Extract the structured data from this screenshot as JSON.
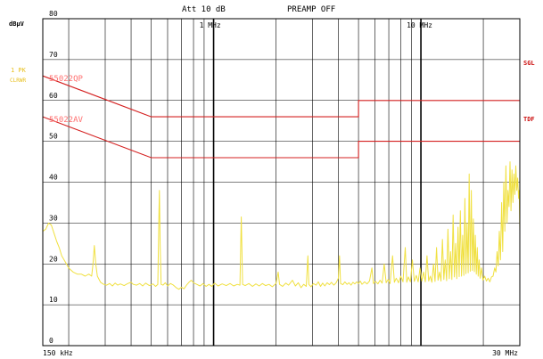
{
  "header": {
    "attenuation": "Att 10 dB",
    "preamp": "PREAMP OFF"
  },
  "left_labels": {
    "unit": "dBµV",
    "trace_mode": "1 PK",
    "trace_clear": "CLRWR"
  },
  "right_labels": {
    "sgl": "SGL",
    "tdf": "TDF"
  },
  "colors": {
    "trace": "#f0e040",
    "limit": "#d42020",
    "grid": "#000000",
    "annotation_left": "#e8c020",
    "annotation_right": "#cc1010",
    "limit_label": "#ff7070"
  },
  "chart_data": {
    "type": "line",
    "title": "",
    "xlabel": "",
    "ylabel": "dBµV",
    "x_scale": "log",
    "xlim_hz": [
      150000,
      30000000
    ],
    "ylim": [
      0,
      80
    ],
    "grid": true,
    "x_tick_labels": [
      {
        "hz": 150000,
        "text": "150 kHz"
      },
      {
        "hz": 30000000,
        "text": "30 MHz"
      },
      {
        "hz": 1000000,
        "text": "1 MHz"
      },
      {
        "hz": 10000000,
        "text": "10 MHz"
      }
    ],
    "x_grid_hz": [
      200000,
      300000,
      400000,
      500000,
      600000,
      700000,
      800000,
      900000,
      1000000,
      2000000,
      3000000,
      4000000,
      5000000,
      6000000,
      7000000,
      8000000,
      9000000,
      10000000,
      20000000
    ],
    "y_ticks": [
      0,
      10,
      20,
      30,
      40,
      50,
      60,
      70,
      80
    ],
    "limit_lines": [
      {
        "name": "EN55022QP",
        "display": "55022QP",
        "points": [
          [
            150000,
            66
          ],
          [
            500000,
            56
          ],
          [
            5000000,
            56
          ],
          [
            5000000,
            60
          ],
          [
            30000000,
            60
          ]
        ]
      },
      {
        "name": "EN55022AV",
        "display": "55022AV",
        "points": [
          [
            150000,
            56
          ],
          [
            500000,
            46
          ],
          [
            5000000,
            46
          ],
          [
            5000000,
            50
          ],
          [
            30000000,
            50
          ]
        ]
      }
    ],
    "trace_points": [
      [
        150000,
        28
      ],
      [
        155000,
        28.5
      ],
      [
        160000,
        30
      ],
      [
        165000,
        29.5
      ],
      [
        170000,
        27.5
      ],
      [
        175000,
        25.5
      ],
      [
        180000,
        24
      ],
      [
        185000,
        22
      ],
      [
        190000,
        21
      ],
      [
        195000,
        20
      ],
      [
        200000,
        19
      ],
      [
        205000,
        18.5
      ],
      [
        210000,
        18
      ],
      [
        220000,
        17.5
      ],
      [
        230000,
        17.5
      ],
      [
        240000,
        17
      ],
      [
        250000,
        17.5
      ],
      [
        258000,
        17
      ],
      [
        262000,
        20
      ],
      [
        266000,
        24.5
      ],
      [
        270000,
        20
      ],
      [
        275000,
        17
      ],
      [
        285000,
        15.5
      ],
      [
        295000,
        15
      ],
      [
        305000,
        14.8
      ],
      [
        315000,
        15.2
      ],
      [
        325000,
        14.6
      ],
      [
        335000,
        15.3
      ],
      [
        345000,
        14.8
      ],
      [
        355000,
        15.1
      ],
      [
        370000,
        14.7
      ],
      [
        385000,
        15.2
      ],
      [
        400000,
        15.5
      ],
      [
        410000,
        15
      ],
      [
        425000,
        14.8
      ],
      [
        440000,
        15.2
      ],
      [
        455000,
        14.6
      ],
      [
        470000,
        15.3
      ],
      [
        490000,
        14.7
      ],
      [
        510000,
        15.1
      ],
      [
        525000,
        14.5
      ],
      [
        538000,
        15
      ],
      [
        545000,
        33
      ],
      [
        548000,
        38
      ],
      [
        552000,
        25
      ],
      [
        558000,
        15
      ],
      [
        570000,
        14.8
      ],
      [
        585000,
        15.4
      ],
      [
        600000,
        14.6
      ],
      [
        620000,
        15.2
      ],
      [
        640000,
        14.8
      ],
      [
        660000,
        14.2
      ],
      [
        680000,
        13.8
      ],
      [
        700000,
        14.3
      ],
      [
        720000,
        13.9
      ],
      [
        740000,
        14.8
      ],
      [
        760000,
        15.5
      ],
      [
        780000,
        16
      ],
      [
        800000,
        15.4
      ],
      [
        830000,
        15
      ],
      [
        860000,
        14.6
      ],
      [
        890000,
        15.2
      ],
      [
        920000,
        14.5
      ],
      [
        950000,
        15
      ],
      [
        980000,
        14.5
      ],
      [
        1010000,
        15.3
      ],
      [
        1050000,
        14.6
      ],
      [
        1100000,
        15.1
      ],
      [
        1150000,
        14.7
      ],
      [
        1200000,
        15.2
      ],
      [
        1250000,
        14.6
      ],
      [
        1300000,
        15
      ],
      [
        1340000,
        14.8
      ],
      [
        1360000,
        31.5
      ],
      [
        1380000,
        15
      ],
      [
        1420000,
        14.7
      ],
      [
        1480000,
        15.2
      ],
      [
        1540000,
        14.5
      ],
      [
        1600000,
        15.1
      ],
      [
        1660000,
        14.6
      ],
      [
        1720000,
        15.2
      ],
      [
        1780000,
        14.7
      ],
      [
        1850000,
        15
      ],
      [
        1920000,
        14.4
      ],
      [
        2000000,
        15.2
      ],
      [
        2050000,
        18
      ],
      [
        2080000,
        15
      ],
      [
        2150000,
        14.5
      ],
      [
        2230000,
        15.3
      ],
      [
        2300000,
        14.8
      ],
      [
        2400000,
        16
      ],
      [
        2480000,
        14.6
      ],
      [
        2560000,
        15.4
      ],
      [
        2640000,
        14.2
      ],
      [
        2720000,
        15
      ],
      [
        2800000,
        14.5
      ],
      [
        2850000,
        22
      ],
      [
        2880000,
        15
      ],
      [
        2950000,
        14.4
      ],
      [
        3030000,
        15.2
      ],
      [
        3120000,
        14.8
      ],
      [
        3200000,
        15.6
      ],
      [
        3280000,
        14.5
      ],
      [
        3360000,
        15.3
      ],
      [
        3440000,
        14.6
      ],
      [
        3530000,
        15.4
      ],
      [
        3620000,
        14.9
      ],
      [
        3700000,
        15.5
      ],
      [
        3800000,
        14.8
      ],
      [
        3900000,
        15.4
      ],
      [
        4000000,
        16.5
      ],
      [
        4050000,
        22
      ],
      [
        4100000,
        15.2
      ],
      [
        4200000,
        14.9
      ],
      [
        4300000,
        15.6
      ],
      [
        4400000,
        15
      ],
      [
        4500000,
        15.4
      ],
      [
        4600000,
        14.8
      ],
      [
        4700000,
        15.5
      ],
      [
        4800000,
        15.1
      ],
      [
        4900000,
        15.6
      ],
      [
        5000000,
        15.2
      ],
      [
        5100000,
        15.8
      ],
      [
        5200000,
        15
      ],
      [
        5350000,
        15.6
      ],
      [
        5500000,
        15.1
      ],
      [
        5650000,
        15.8
      ],
      [
        5800000,
        19
      ],
      [
        5900000,
        15.2
      ],
      [
        6050000,
        15.7
      ],
      [
        6200000,
        15.1
      ],
      [
        6350000,
        16
      ],
      [
        6500000,
        15.3
      ],
      [
        6650000,
        20
      ],
      [
        6800000,
        15.4
      ],
      [
        6950000,
        16.2
      ],
      [
        7100000,
        15.2
      ],
      [
        7300000,
        22
      ],
      [
        7450000,
        15.5
      ],
      [
        7600000,
        16.5
      ],
      [
        7800000,
        15.4
      ],
      [
        8000000,
        17
      ],
      [
        8200000,
        15.6
      ],
      [
        8400000,
        24
      ],
      [
        8550000,
        15.5
      ],
      [
        8700000,
        16.8
      ],
      [
        8900000,
        15.6
      ],
      [
        9100000,
        21
      ],
      [
        9300000,
        15.7
      ],
      [
        9500000,
        17.2
      ],
      [
        9700000,
        15.6
      ],
      [
        9900000,
        19
      ],
      [
        10100000,
        15.8
      ],
      [
        10300000,
        18
      ],
      [
        10500000,
        15.6
      ],
      [
        10700000,
        22
      ],
      [
        10900000,
        15.8
      ],
      [
        11100000,
        17
      ],
      [
        11300000,
        15.5
      ],
      [
        11500000,
        20
      ],
      [
        11700000,
        15.7
      ],
      [
        11900000,
        24
      ],
      [
        12100000,
        16
      ],
      [
        12300000,
        18
      ],
      [
        12500000,
        15.8
      ],
      [
        12700000,
        26
      ],
      [
        12900000,
        16.2
      ],
      [
        13100000,
        21
      ],
      [
        13300000,
        15.9
      ],
      [
        13500000,
        28.5
      ],
      [
        13700000,
        16.4
      ],
      [
        13900000,
        23
      ],
      [
        14100000,
        16.2
      ],
      [
        14300000,
        32
      ],
      [
        14500000,
        16.8
      ],
      [
        14700000,
        25
      ],
      [
        14900000,
        16.4
      ],
      [
        15100000,
        29
      ],
      [
        15300000,
        16.9
      ],
      [
        15500000,
        33
      ],
      [
        15700000,
        17
      ],
      [
        15900000,
        27
      ],
      [
        16100000,
        17.2
      ],
      [
        16300000,
        36
      ],
      [
        16500000,
        17.6
      ],
      [
        16700000,
        30
      ],
      [
        16900000,
        17.8
      ],
      [
        17100000,
        42
      ],
      [
        17300000,
        18.2
      ],
      [
        17500000,
        38
      ],
      [
        17700000,
        18.4
      ],
      [
        17900000,
        31
      ],
      [
        18100000,
        18.1
      ],
      [
        18300000,
        27
      ],
      [
        18500000,
        17.5
      ],
      [
        18700000,
        24
      ],
      [
        18900000,
        17
      ],
      [
        19100000,
        21
      ],
      [
        19300000,
        16.5
      ],
      [
        19600000,
        19
      ],
      [
        19900000,
        16
      ],
      [
        20300000,
        17
      ],
      [
        20700000,
        15.8
      ],
      [
        21100000,
        16.5
      ],
      [
        21500000,
        15.6
      ],
      [
        21900000,
        16.8
      ],
      [
        22300000,
        17
      ],
      [
        22700000,
        19
      ],
      [
        23000000,
        18
      ],
      [
        23300000,
        23
      ],
      [
        23600000,
        19.5
      ],
      [
        23900000,
        28
      ],
      [
        24200000,
        21
      ],
      [
        24500000,
        35
      ],
      [
        24800000,
        23
      ],
      [
        25100000,
        40
      ],
      [
        25400000,
        28
      ],
      [
        25700000,
        44
      ],
      [
        26000000,
        30
      ],
      [
        26300000,
        38
      ],
      [
        26600000,
        34
      ],
      [
        26900000,
        45
      ],
      [
        27200000,
        33
      ],
      [
        27500000,
        43
      ],
      [
        27800000,
        35
      ],
      [
        28100000,
        42
      ],
      [
        28400000,
        37
      ],
      [
        28700000,
        44
      ],
      [
        29000000,
        38
      ],
      [
        29300000,
        41
      ],
      [
        29600000,
        36
      ],
      [
        29800000,
        38
      ],
      [
        30000000,
        28
      ]
    ]
  }
}
